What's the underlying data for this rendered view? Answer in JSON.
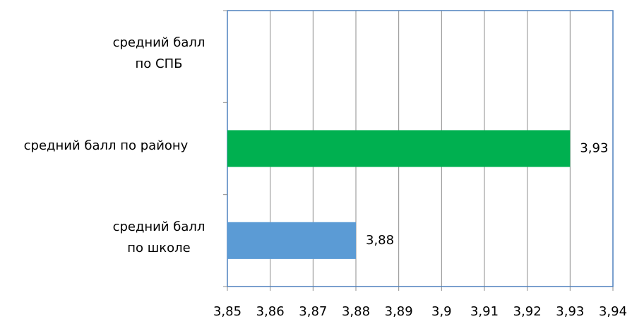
{
  "chart_data": {
    "type": "barh",
    "categories": [
      "средний балл по СПБ",
      "средний балл по району",
      "средний балл по школе"
    ],
    "values": [
      null,
      3.93,
      3.88
    ],
    "value_labels": [
      null,
      "3,93",
      "3,88"
    ],
    "colors": [
      null,
      "#00b050",
      "#5b9bd5"
    ],
    "xlim": [
      3.85,
      3.94
    ],
    "xticks": [
      {
        "value": 3.85,
        "label": "3,85"
      },
      {
        "value": 3.86,
        "label": "3,86"
      },
      {
        "value": 3.87,
        "label": "3,87"
      },
      {
        "value": 3.88,
        "label": "3,88"
      },
      {
        "value": 3.89,
        "label": "3,89"
      },
      {
        "value": 3.9,
        "label": "3,9"
      },
      {
        "value": 3.91,
        "label": "3,91"
      },
      {
        "value": 3.92,
        "label": "3,92"
      },
      {
        "value": 3.93,
        "label": "3,93"
      },
      {
        "value": 3.94,
        "label": "3,94"
      }
    ],
    "grid": true
  }
}
